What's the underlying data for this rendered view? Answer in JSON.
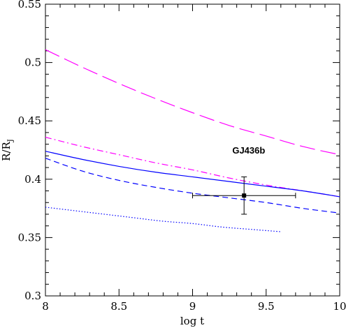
{
  "chart_data": {
    "type": "line",
    "title": "",
    "xlabel": "log t",
    "ylabel_main": "R/R",
    "ylabel_sub": "J",
    "xlim": [
      8,
      10
    ],
    "ylim": [
      0.3,
      0.55
    ],
    "x_ticks": [
      "8",
      "8.5",
      "9",
      "9.5",
      "10"
    ],
    "y_ticks": [
      "0.3",
      "0.35",
      "0.4",
      "0.45",
      "0.5",
      "0.55"
    ],
    "grid": false,
    "series": [
      {
        "style": "long-dash",
        "color": "#ff00ff",
        "x": [
          8.0,
          8.25,
          8.5,
          8.75,
          9.0,
          9.25,
          9.5,
          9.75,
          10.0
        ],
        "y": [
          0.511,
          0.496,
          0.482,
          0.469,
          0.457,
          0.446,
          0.437,
          0.428,
          0.421
        ]
      },
      {
        "style": "dash-dot",
        "color": "#ff00ff",
        "x": [
          8.0,
          8.25,
          8.5,
          8.75,
          9.0,
          9.25,
          9.5,
          9.75,
          10.0
        ],
        "y": [
          0.436,
          0.428,
          0.421,
          0.414,
          0.408,
          0.401,
          0.395,
          0.39,
          0.385
        ]
      },
      {
        "style": "solid",
        "color": "#0000ff",
        "x": [
          8.0,
          8.25,
          8.5,
          8.75,
          9.0,
          9.25,
          9.5,
          9.75,
          10.0
        ],
        "y": [
          0.424,
          0.417,
          0.411,
          0.406,
          0.402,
          0.398,
          0.394,
          0.39,
          0.385
        ]
      },
      {
        "style": "short-dash",
        "color": "#0000ff",
        "x": [
          8.0,
          8.25,
          8.5,
          8.75,
          9.0,
          9.25,
          9.5,
          9.75,
          10.0
        ],
        "y": [
          0.418,
          0.407,
          0.399,
          0.393,
          0.388,
          0.384,
          0.38,
          0.375,
          0.371
        ]
      },
      {
        "style": "dotted",
        "color": "#0000ff",
        "x": [
          8.0,
          8.2,
          8.4,
          8.6,
          8.8,
          9.0,
          9.2,
          9.4,
          9.6
        ],
        "y": [
          0.376,
          0.373,
          0.37,
          0.367,
          0.364,
          0.362,
          0.359,
          0.357,
          0.355
        ]
      }
    ],
    "points": [
      {
        "label": "GJ436b",
        "x": 9.35,
        "y": 0.386,
        "x_err": [
          9.0,
          9.7
        ],
        "y_err": [
          0.37,
          0.402
        ]
      }
    ],
    "annotation": {
      "text": "GJ436b",
      "x": 9.27,
      "y": 0.422
    }
  }
}
